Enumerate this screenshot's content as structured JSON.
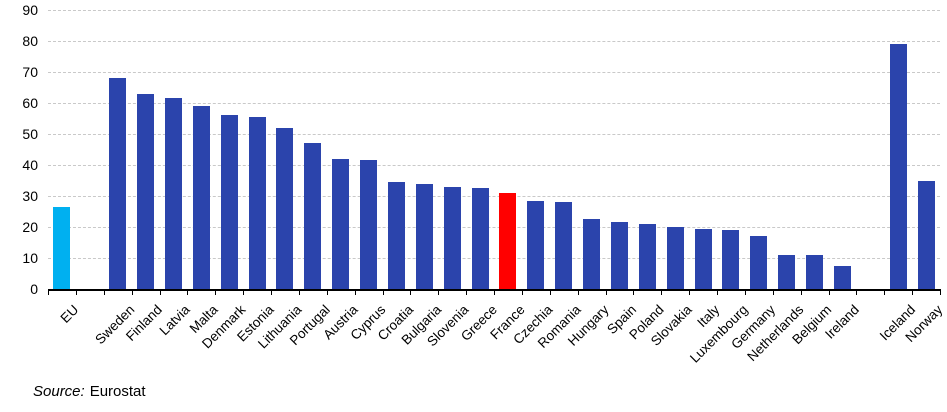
{
  "chart_data": {
    "type": "bar",
    "title": "",
    "xlabel": "",
    "ylabel": "",
    "ylim": [
      0,
      90
    ],
    "yticks": [
      0,
      10,
      20,
      30,
      40,
      50,
      60,
      70,
      80,
      90
    ],
    "grid": "horizontal-dashed",
    "legend": "none",
    "categories": [
      "EU",
      "Sweden",
      "Finland",
      "Latvia",
      "Malta",
      "Denmark",
      "Estonia",
      "Lithuania",
      "Portugal",
      "Austria",
      "Cyprus",
      "Croatia",
      "Bulgaria",
      "Slovenia",
      "Greece",
      "France",
      "Czechia",
      "Romania",
      "Hungary",
      "Spain",
      "Poland",
      "Slovakia",
      "Italy",
      "Luxembourg",
      "Germany",
      "Netherlands",
      "Belgium",
      "Ireland",
      "Iceland",
      "Norway"
    ],
    "values": [
      26.5,
      68,
      63,
      61.5,
      59,
      56,
      55.5,
      52,
      47,
      42,
      41.5,
      34.5,
      34,
      33,
      32.5,
      31,
      28.5,
      28,
      22.5,
      21.5,
      21,
      20,
      19.5,
      19,
      17,
      11,
      11,
      7.5,
      79,
      35
    ],
    "spacer_after_indices": [
      0,
      27
    ],
    "color_overrides": {
      "EU": "eu",
      "France": "highlight"
    }
  },
  "colors": {
    "eu": "#00B0F0",
    "member": "#2B44AC",
    "highlight": "#FF0000",
    "gridline": "#C9C9C9",
    "axis": "#000000",
    "text": "#000000"
  },
  "source": {
    "prefix": "Source:",
    "text": "Eurostat"
  }
}
